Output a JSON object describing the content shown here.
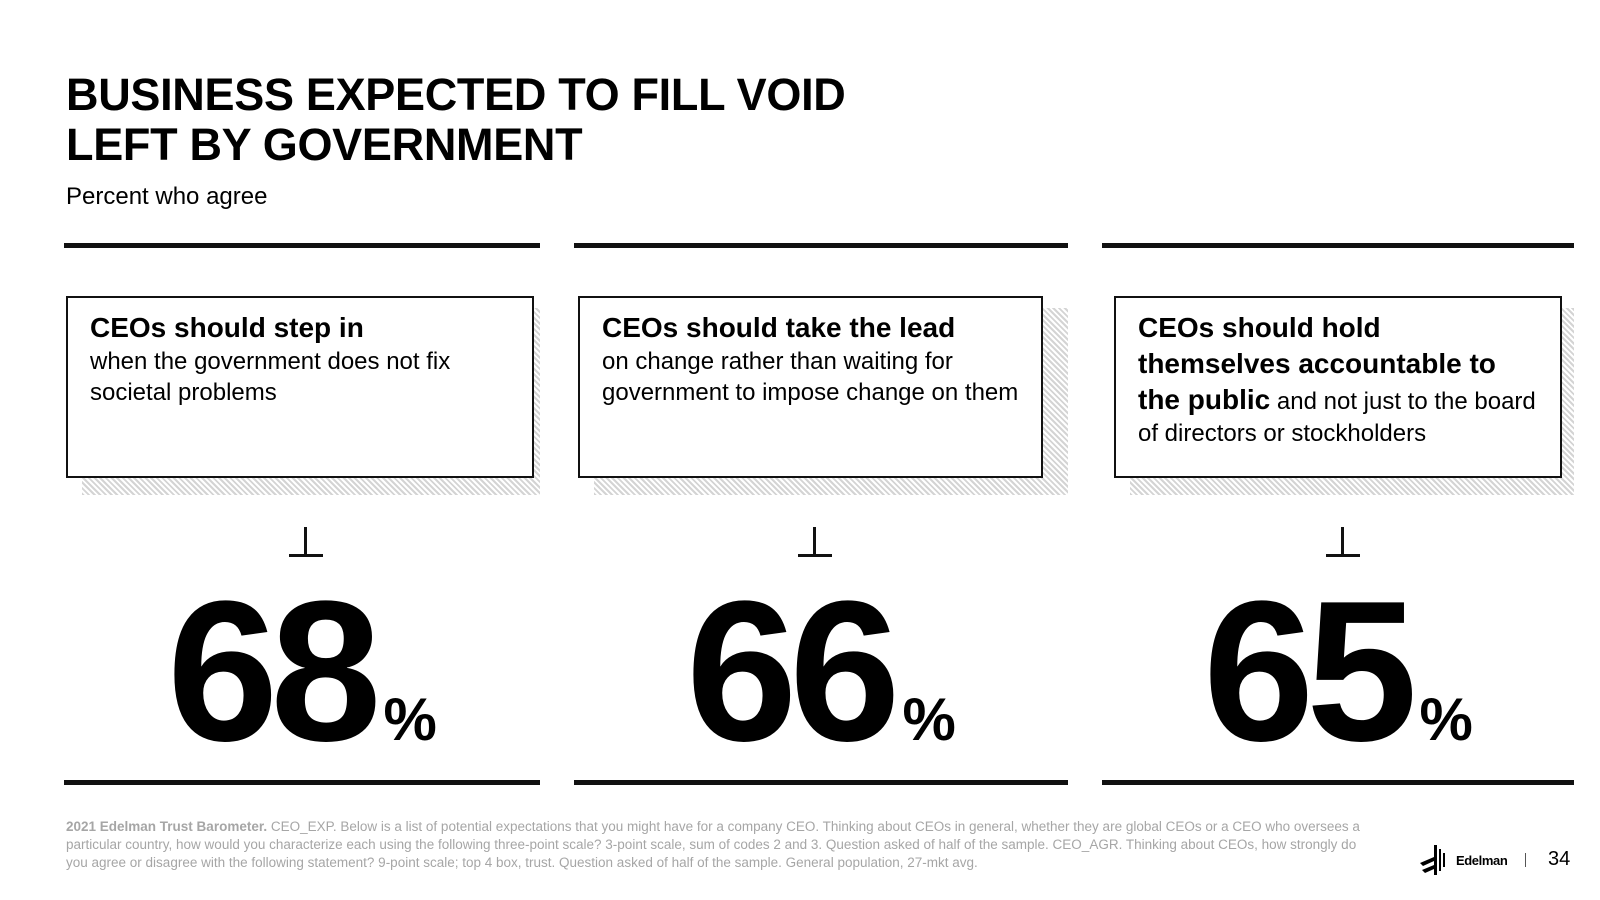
{
  "slide": {
    "title": "BUSINESS EXPECTED TO FILL VOID\nLEFT BY GOVERNMENT",
    "subtitle": "Percent who agree"
  },
  "statements": [
    {
      "lead": "CEOs should step in",
      "rest": "when the government does not fix societal problems",
      "value": "68",
      "unit": "%"
    },
    {
      "lead": "CEOs should take the lead",
      "rest": "on change rather than waiting for government to impose change on them",
      "value": "66",
      "unit": "%"
    },
    {
      "lead": "CEOs should hold themselves accountable to the public",
      "rest": "and not just to the board of directors or stockholders",
      "value": "65",
      "unit": "%"
    }
  ],
  "footer": {
    "source_bold": "2021 Edelman Trust Barometer.",
    "source_text": "CEO_EXP. Below is a list of potential expectations that you might have for a company CEO. Thinking about CEOs in general, whether they are global CEOs or a CEO who oversees a particular country, how would you characterize each using the following three-point scale? 3-point scale, sum of codes 2 and 3. Question asked of half of the sample. CEO_AGR. Thinking about CEOs, how strongly do you agree or disagree with the following statement? 9-point scale; top 4 box, trust. Question asked of half of the sample. General population, 27-mkt avg.",
    "logo_text": "Edelman",
    "page_number": "34"
  }
}
